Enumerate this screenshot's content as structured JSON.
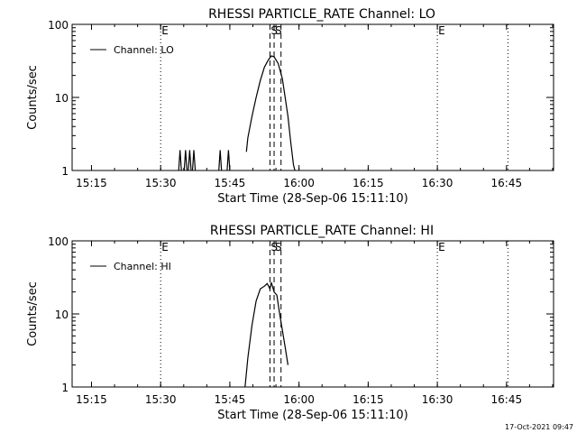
{
  "footer": {
    "timestamp": "17-Oct-2021 09:47"
  },
  "chart_data": [
    {
      "type": "line",
      "title": "RHESSI PARTICLE_RATE Channel: LO",
      "xlabel": "Start Time (28-Sep-06 15:11:10)",
      "ylabel": "Counts/sec",
      "x_unit": "minutes",
      "xlim": [
        15.18,
        16.92
      ],
      "ylim": [
        1,
        100
      ],
      "y_scale": "log",
      "x_ticks": [
        {
          "value": 15.25,
          "label": "15:15"
        },
        {
          "value": 15.5,
          "label": "15:30"
        },
        {
          "value": 15.75,
          "label": "15:45"
        },
        {
          "value": 16.0,
          "label": "16:00"
        },
        {
          "value": 16.25,
          "label": "16:15"
        },
        {
          "value": 16.5,
          "label": "16:30"
        },
        {
          "value": 16.75,
          "label": "16:45"
        }
      ],
      "y_ticks": [
        {
          "value": 1,
          "label": "1"
        },
        {
          "value": 10,
          "label": "10"
        },
        {
          "value": 100,
          "label": "100"
        }
      ],
      "legend": {
        "position": "top-left",
        "entries": [
          "Channel: LO"
        ]
      },
      "markers": [
        {
          "x": 15.5,
          "style": "dotted",
          "label": "E"
        },
        {
          "x": 15.895,
          "style": "dashed",
          "label": "S"
        },
        {
          "x": 15.91,
          "style": "dashed",
          "label": "S"
        },
        {
          "x": 15.935,
          "style": "dashed",
          "label": ""
        },
        {
          "x": 16.5,
          "style": "dotted",
          "label": "E"
        },
        {
          "x": 16.755,
          "style": "dotted",
          "label": ""
        }
      ],
      "series": [
        {
          "name": "Channel: LO",
          "segments": [
            [
              [
                15.565,
                1
              ],
              [
                15.57,
                1.9
              ],
              [
                15.575,
                1
              ]
            ],
            [
              [
                15.585,
                1
              ],
              [
                15.59,
                1.9
              ],
              [
                15.595,
                1
              ]
            ],
            [
              [
                15.6,
                1
              ],
              [
                15.605,
                1.9
              ],
              [
                15.61,
                1
              ]
            ],
            [
              [
                15.615,
                1
              ],
              [
                15.62,
                1.9
              ],
              [
                15.625,
                1
              ]
            ],
            [
              [
                15.71,
                1
              ],
              [
                15.715,
                1.9
              ],
              [
                15.72,
                1
              ]
            ],
            [
              [
                15.74,
                1
              ],
              [
                15.745,
                1.9
              ],
              [
                15.75,
                1
              ]
            ],
            [
              [
                15.81,
                1.8
              ],
              [
                15.815,
                2.8
              ],
              [
                15.83,
                5.5
              ],
              [
                15.845,
                10
              ],
              [
                15.86,
                17
              ],
              [
                15.875,
                26
              ],
              [
                15.89,
                33
              ],
              [
                15.9,
                37
              ],
              [
                15.91,
                36
              ],
              [
                15.925,
                29
              ],
              [
                15.94,
                18
              ],
              [
                15.95,
                10
              ],
              [
                15.96,
                5.5
              ],
              [
                15.97,
                2.5
              ],
              [
                15.98,
                1.2
              ],
              [
                15.985,
                1
              ]
            ]
          ]
        }
      ]
    },
    {
      "type": "line",
      "title": "RHESSI PARTICLE_RATE Channel: HI",
      "xlabel": "Start Time (28-Sep-06 15:11:10)",
      "ylabel": "Counts/sec",
      "x_unit": "minutes",
      "xlim": [
        15.18,
        16.92
      ],
      "ylim": [
        1,
        100
      ],
      "y_scale": "log",
      "x_ticks": [
        {
          "value": 15.25,
          "label": "15:15"
        },
        {
          "value": 15.5,
          "label": "15:30"
        },
        {
          "value": 15.75,
          "label": "15:45"
        },
        {
          "value": 16.0,
          "label": "16:00"
        },
        {
          "value": 16.25,
          "label": "16:15"
        },
        {
          "value": 16.5,
          "label": "16:30"
        },
        {
          "value": 16.75,
          "label": "16:45"
        }
      ],
      "y_ticks": [
        {
          "value": 1,
          "label": "1"
        },
        {
          "value": 10,
          "label": "10"
        },
        {
          "value": 100,
          "label": "100"
        }
      ],
      "legend": {
        "position": "top-left",
        "entries": [
          "Channel: HI"
        ]
      },
      "markers": [
        {
          "x": 15.5,
          "style": "dotted",
          "label": "E"
        },
        {
          "x": 15.895,
          "style": "dashed",
          "label": "S"
        },
        {
          "x": 15.91,
          "style": "dashed",
          "label": "S"
        },
        {
          "x": 15.935,
          "style": "dashed",
          "label": ""
        },
        {
          "x": 16.5,
          "style": "dotted",
          "label": "E"
        },
        {
          "x": 16.755,
          "style": "dotted",
          "label": ""
        }
      ],
      "series": [
        {
          "name": "Channel: HI",
          "segments": [
            [
              [
                15.805,
                1
              ],
              [
                15.815,
                2.5
              ],
              [
                15.83,
                7
              ],
              [
                15.845,
                15
              ],
              [
                15.86,
                22
              ],
              [
                15.875,
                24
              ],
              [
                15.885,
                26
              ],
              [
                15.895,
                22
              ],
              [
                15.9,
                27
              ],
              [
                15.91,
                20
              ],
              [
                15.92,
                18
              ],
              [
                15.93,
                10
              ],
              [
                15.94,
                6
              ],
              [
                15.95,
                3.5
              ],
              [
                15.96,
                2
              ]
            ]
          ]
        }
      ]
    }
  ]
}
